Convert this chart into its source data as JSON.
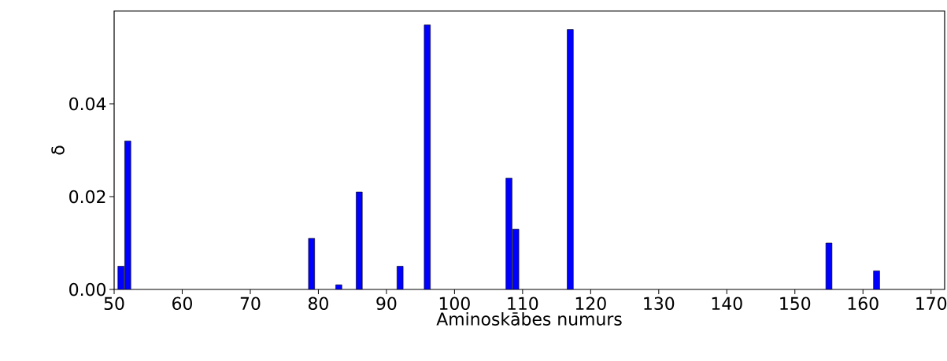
{
  "chart_data": {
    "type": "bar",
    "xlabel": "Aminoskābes numurs",
    "ylabel": "δ",
    "x": [
      51,
      52,
      79,
      83,
      86,
      92,
      96,
      108,
      109,
      117,
      155,
      162
    ],
    "values": [
      0.005,
      0.032,
      0.011,
      0.001,
      0.021,
      0.005,
      0.057,
      0.024,
      0.013,
      0.056,
      0.01,
      0.004
    ],
    "color": "#0000ff",
    "xlim": [
      50,
      172
    ],
    "xticks": [
      50,
      60,
      70,
      80,
      90,
      100,
      110,
      120,
      130,
      140,
      150,
      160,
      170
    ],
    "ylim": [
      0,
      0.06
    ],
    "yticks": [
      {
        "value": 0,
        "label": "0.00"
      },
      {
        "value": 0.02,
        "label": "0.02"
      },
      {
        "value": 0.04,
        "label": "0.04"
      }
    ],
    "grid": false
  }
}
